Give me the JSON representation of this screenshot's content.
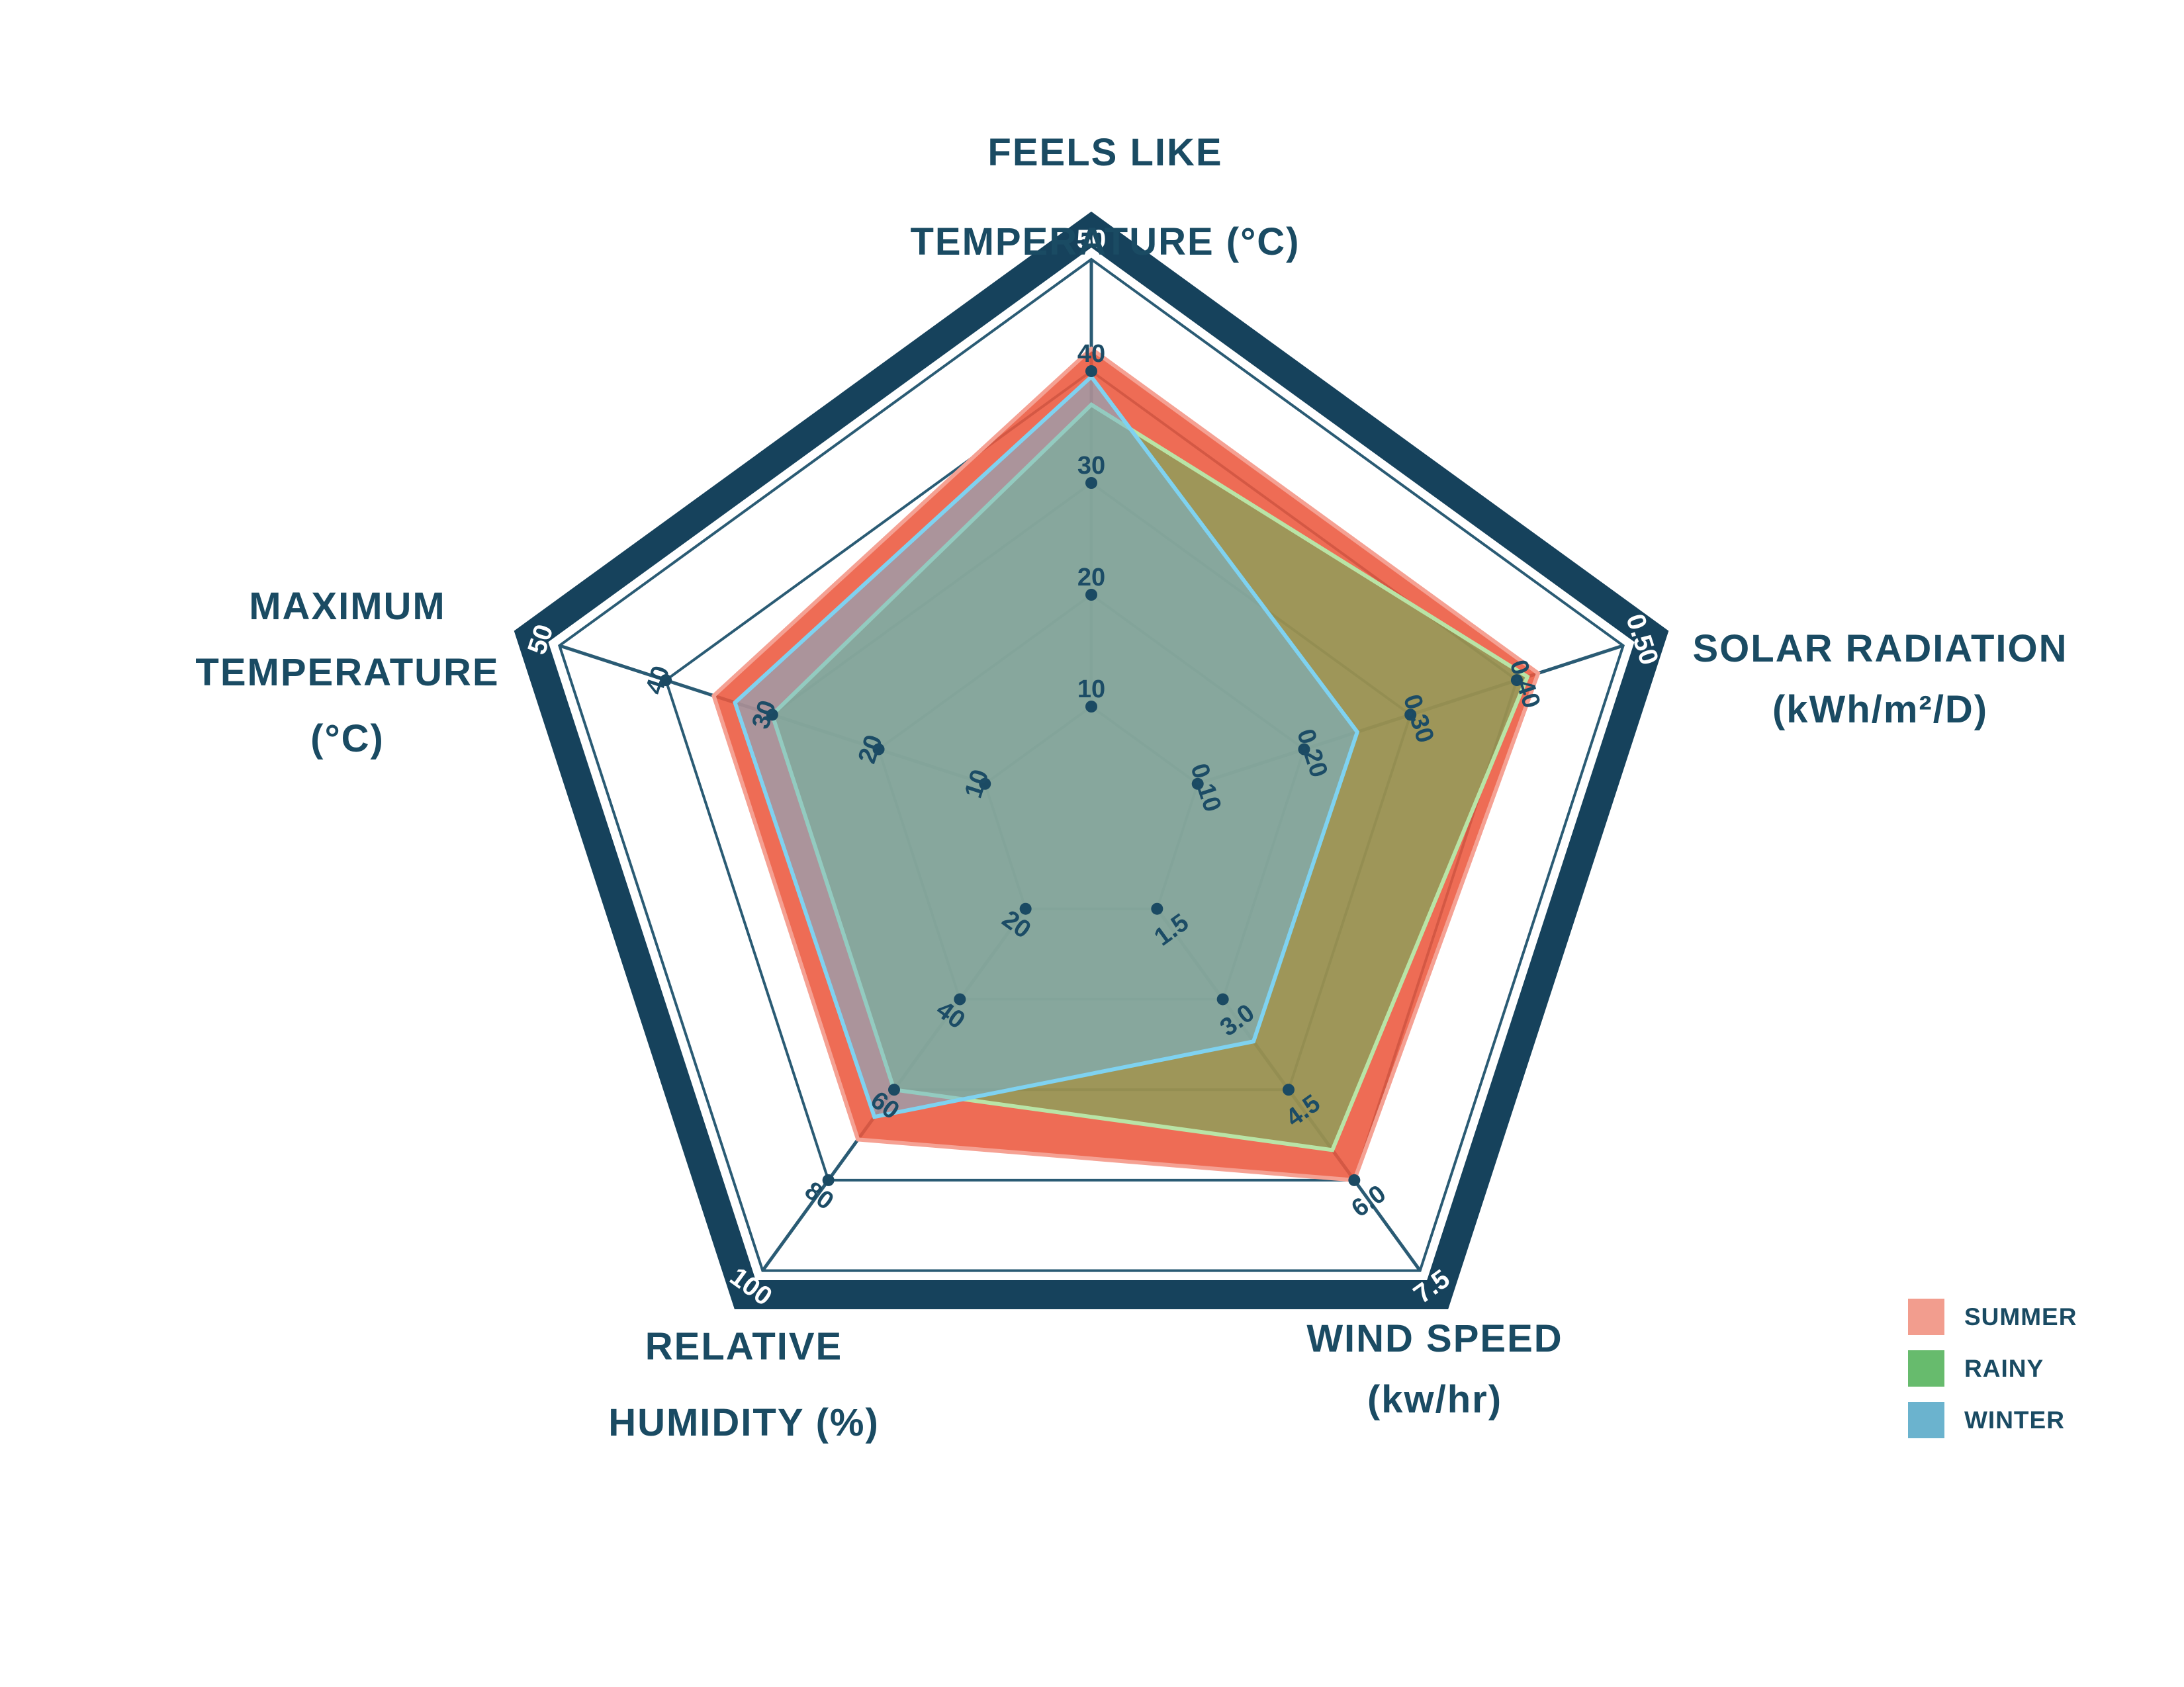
{
  "figure": {
    "background": "#ffffff"
  },
  "colors": {
    "border_navy": "#16425C",
    "grid_line": "#2A5B74",
    "tick_dot": "#1B4A63",
    "tick_text": "#1C4C66",
    "outer_tick_text": "#FFFFFF",
    "title_text": "#1A4B63"
  },
  "chart_data": {
    "type": "radar",
    "grid": "pentagon, 5 concentric levels, grid on",
    "legend_position": "bottom-right",
    "axes": [
      {
        "id": "feels_like",
        "title_lines": [
          "FEELS LIKE",
          "TEMPERATURE (°C)"
        ],
        "min": 0,
        "max": 50,
        "tick_step": 10,
        "ticks": [
          10,
          20,
          30,
          40,
          50
        ],
        "tick_labels": [
          "10",
          "20",
          "30",
          "40",
          "50"
        ]
      },
      {
        "id": "solar_radiation",
        "title_lines": [
          "SOLAR RADIATION",
          "(kWh/m²/D)"
        ],
        "min": 0,
        "max": 0.5,
        "tick_step": 0.1,
        "ticks": [
          0.1,
          0.2,
          0.3,
          0.4,
          0.5
        ],
        "tick_labels": [
          "0.10",
          "0.20",
          "0.30",
          "0.40",
          "0.50"
        ]
      },
      {
        "id": "wind_speed",
        "title_lines": [
          "WIND SPEED",
          "(kw/hr)"
        ],
        "min": 0,
        "max": 7.5,
        "tick_step": 1.5,
        "ticks": [
          1.5,
          3.0,
          4.5,
          6.0,
          7.5
        ],
        "tick_labels": [
          "1.5",
          "3.0",
          "4.5",
          "6.0",
          "7.5"
        ]
      },
      {
        "id": "relative_humidity",
        "title_lines": [
          "RELATIVE",
          "HUMIDITY (%)"
        ],
        "min": 0,
        "max": 100,
        "tick_step": 20,
        "ticks": [
          20,
          40,
          60,
          80,
          100
        ],
        "tick_labels": [
          "20",
          "40",
          "60",
          "80",
          "100"
        ]
      },
      {
        "id": "maximum_temperature",
        "title_lines": [
          "MAXIMUM",
          "TEMPERATURE",
          "(°C)"
        ],
        "min": 0,
        "max": 50,
        "tick_step": 10,
        "ticks": [
          10,
          20,
          30,
          40,
          50
        ],
        "tick_labels": [
          "10",
          "20",
          "30",
          "40",
          "50"
        ]
      }
    ],
    "series": [
      {
        "name": "SUMMER",
        "values": [
          42,
          0.42,
          6.0,
          71,
          35.5
        ],
        "fill": "rgba(236,88,62,0.88)",
        "stroke": "#F5A193"
      },
      {
        "name": "RAINY",
        "values": [
          37,
          0.41,
          5.5,
          60,
          30
        ],
        "fill": "rgba(105,178,92,0.60)",
        "stroke": "#B9E4A6"
      },
      {
        "name": "WINTER",
        "values": [
          39.5,
          0.25,
          3.7,
          66,
          33.5
        ],
        "fill": "rgba(116,183,213,0.55)",
        "stroke": "#7FD2F0"
      }
    ]
  },
  "legend": {
    "items": [
      {
        "label": "SUMMER",
        "color": "#F29D8E"
      },
      {
        "label": "RAINY",
        "color": "#67BB6D"
      },
      {
        "label": "WINTER",
        "color": "#6BB3CE"
      }
    ]
  }
}
